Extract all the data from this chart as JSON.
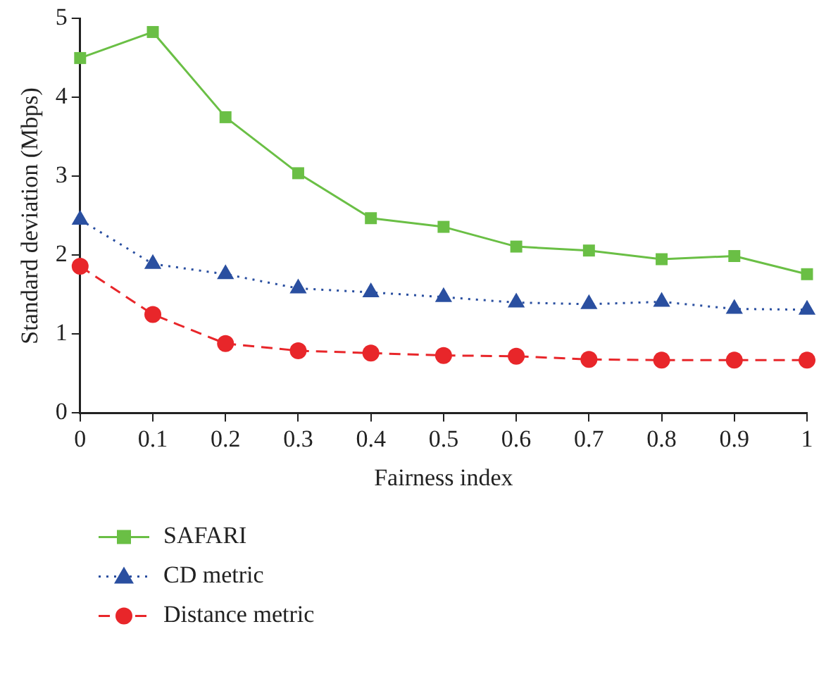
{
  "chart_data": {
    "type": "line",
    "xlabel": "Fairness index",
    "ylabel": "Standard deviation (Mbps)",
    "x": [
      0,
      0.1,
      0.2,
      0.3,
      0.4,
      0.5,
      0.6,
      0.7,
      0.8,
      0.9,
      1
    ],
    "xlim": [
      0,
      1
    ],
    "xticks": [
      0,
      0.1,
      0.2,
      0.3,
      0.4,
      0.5,
      0.6,
      0.7,
      0.8,
      0.9,
      1
    ],
    "ylim": [
      0,
      5
    ],
    "yticks": [
      0,
      1,
      2,
      3,
      4,
      5
    ],
    "grid": false,
    "legend": "bottom left",
    "series": [
      {
        "name": "SAFARI",
        "color": "#6abf45",
        "marker": "square",
        "line_style": "solid",
        "values": [
          4.5,
          4.83,
          3.75,
          3.04,
          2.47,
          2.36,
          2.11,
          2.06,
          1.95,
          1.99,
          1.76
        ]
      },
      {
        "name": "CD metric",
        "color": "#2a4fa0",
        "marker": "triangle",
        "line_style": "dotted",
        "values": [
          2.45,
          1.89,
          1.76,
          1.58,
          1.53,
          1.47,
          1.4,
          1.38,
          1.41,
          1.32,
          1.31
        ]
      },
      {
        "name": "Distance metric",
        "color": "#e8262a",
        "marker": "circle",
        "line_style": "dashed",
        "values": [
          1.86,
          1.25,
          0.88,
          0.79,
          0.76,
          0.73,
          0.72,
          0.68,
          0.67,
          0.67,
          0.67
        ]
      }
    ]
  }
}
